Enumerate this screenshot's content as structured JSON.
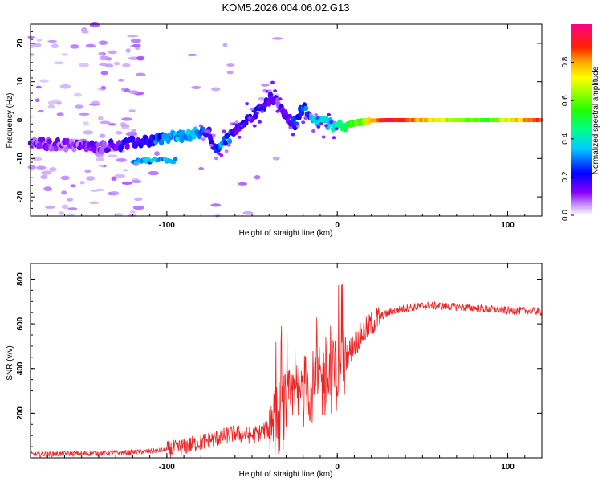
{
  "title": "KOM5.2026.004.06.02.G13",
  "chart_data": [
    {
      "type": "heatmap",
      "name": "spectrogram",
      "xlabel": "Height of straight line (km)",
      "ylabel": "Frequency (Hz)",
      "xlim": [
        -180,
        120
      ],
      "ylim": [
        -25,
        25
      ],
      "xticks": [
        -100,
        0,
        100
      ],
      "yticks": [
        -20,
        -10,
        0,
        10,
        20
      ],
      "colorbar": {
        "label": "Normalized spectral amplitude",
        "range": [
          0,
          1
        ],
        "ticks": [
          0.0,
          0.2,
          0.4,
          0.6,
          0.8
        ]
      },
      "ridge": {
        "x": [
          -180,
          -160,
          -140,
          -120,
          -100,
          -90,
          -80,
          -75,
          -72,
          -68,
          -65,
          -62,
          -58,
          -55,
          -50,
          -45,
          -40,
          -38,
          -35,
          -32,
          -30,
          -28,
          -25,
          -22,
          -20,
          -15,
          -10,
          -5,
          0,
          5,
          10,
          15,
          20,
          30,
          60,
          90,
          100,
          120
        ],
        "y": [
          -6,
          -6.5,
          -7,
          -6,
          -4.5,
          -4,
          -3.5,
          -3,
          -8,
          -6,
          -5,
          -4,
          -2,
          0,
          1,
          3,
          5,
          6,
          5,
          2,
          1,
          0,
          -1,
          2,
          3,
          1,
          0,
          -1,
          -1.5,
          -1.2,
          -0.8,
          -0.4,
          -0.1,
          0,
          0,
          0,
          0,
          0
        ],
        "amplitude": [
          0.15,
          0.12,
          0.15,
          0.2,
          0.3,
          0.35,
          0.3,
          0.2,
          0.25,
          0.3,
          0.3,
          0.25,
          0.2,
          0.22,
          0.2,
          0.2,
          0.2,
          0.15,
          0.15,
          0.2,
          0.2,
          0.2,
          0.25,
          0.25,
          0.25,
          0.3,
          0.35,
          0.38,
          0.45,
          0.5,
          0.55,
          0.6,
          0.75,
          0.95,
          0.7,
          0.55,
          0.7,
          0.9
        ]
      }
    },
    {
      "type": "line",
      "name": "snr",
      "xlabel": "Height of straight line (km)",
      "ylabel": "SNR (v/v)",
      "xlim": [
        -180,
        120
      ],
      "ylim": [
        0,
        870
      ],
      "xticks": [
        -100,
        0,
        100
      ],
      "yticks": [
        200,
        400,
        600,
        800
      ],
      "color": "#ee2222",
      "series": [
        {
          "name": "SNR",
          "x": [
            -180,
            -160,
            -140,
            -120,
            -110,
            -100,
            -90,
            -80,
            -70,
            -60,
            -50,
            -40,
            -30,
            -20,
            -10,
            0,
            5,
            10,
            15,
            20,
            25,
            30,
            40,
            50,
            60,
            70,
            80,
            90,
            100,
            110,
            120
          ],
          "y": [
            15,
            18,
            20,
            25,
            30,
            35,
            50,
            70,
            90,
            110,
            100,
            130,
            220,
            300,
            330,
            380,
            450,
            510,
            560,
            600,
            630,
            650,
            670,
            680,
            680,
            675,
            670,
            665,
            660,
            658,
            655
          ]
        }
      ]
    }
  ]
}
